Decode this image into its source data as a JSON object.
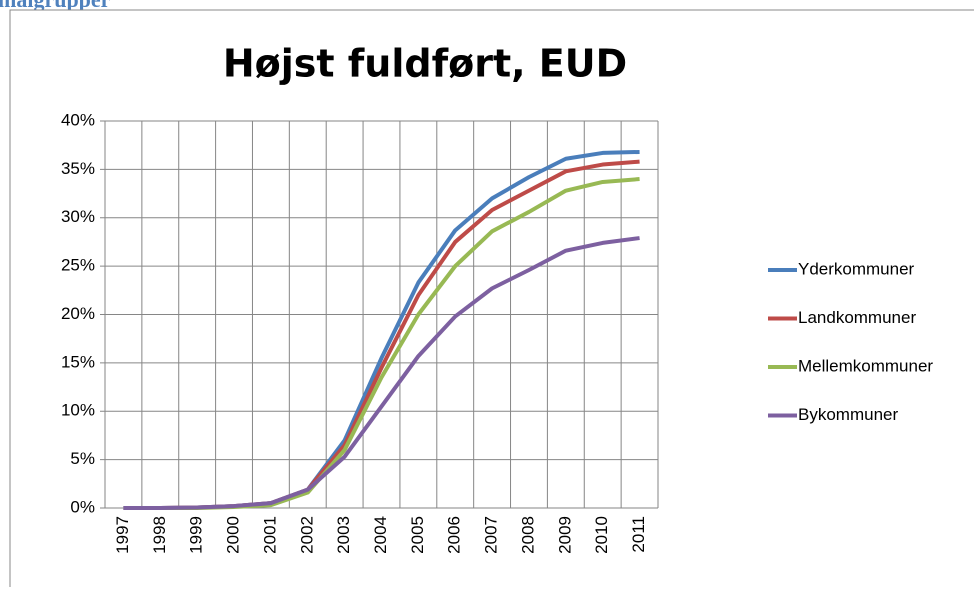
{
  "header": "målgrupper",
  "chart_data": {
    "type": "line",
    "title": "Højst fuldført, EUD",
    "categories": [
      "1997",
      "1998",
      "1999",
      "2000",
      "2001",
      "2002",
      "2003",
      "2004",
      "2005",
      "2006",
      "2007",
      "2008",
      "2009",
      "2010",
      "2011"
    ],
    "series": [
      {
        "name": "Yderkommuner",
        "color": "#4a7ebb",
        "values": [
          0,
          0,
          0.05,
          0.2,
          0.5,
          1.9,
          7,
          15.5,
          23.3,
          28.7,
          32,
          34.2,
          36.1,
          36.7,
          36.8
        ]
      },
      {
        "name": "Landkommuner",
        "color": "#be4b48",
        "values": [
          0,
          0,
          0.05,
          0.2,
          0.5,
          1.9,
          6.5,
          14.5,
          22,
          27.5,
          30.8,
          32.8,
          34.8,
          35.5,
          35.8
        ]
      },
      {
        "name": "Mellemkommuner",
        "color": "#98b954",
        "values": [
          0,
          0,
          0,
          0.1,
          0.3,
          1.6,
          6,
          13.5,
          20,
          25,
          28.6,
          30.6,
          32.8,
          33.7,
          34
        ]
      },
      {
        "name": "Bykommuner",
        "color": "#7d60a0",
        "values": [
          0,
          0,
          0.05,
          0.2,
          0.5,
          1.9,
          5.3,
          10.5,
          15.7,
          19.8,
          22.7,
          24.6,
          26.6,
          27.4,
          27.9
        ]
      }
    ],
    "ylim": [
      0,
      40
    ],
    "yticks": [
      {
        "value": 0,
        "label": "0%"
      },
      {
        "value": 5,
        "label": "5%"
      },
      {
        "value": 10,
        "label": "10%"
      },
      {
        "value": 15,
        "label": "15%"
      },
      {
        "value": 20,
        "label": "20%"
      },
      {
        "value": 25,
        "label": "25%"
      },
      {
        "value": 30,
        "label": "30%"
      },
      {
        "value": 35,
        "label": "35%"
      },
      {
        "value": 40,
        "label": "40%"
      }
    ],
    "grid": true,
    "legend": "right"
  }
}
